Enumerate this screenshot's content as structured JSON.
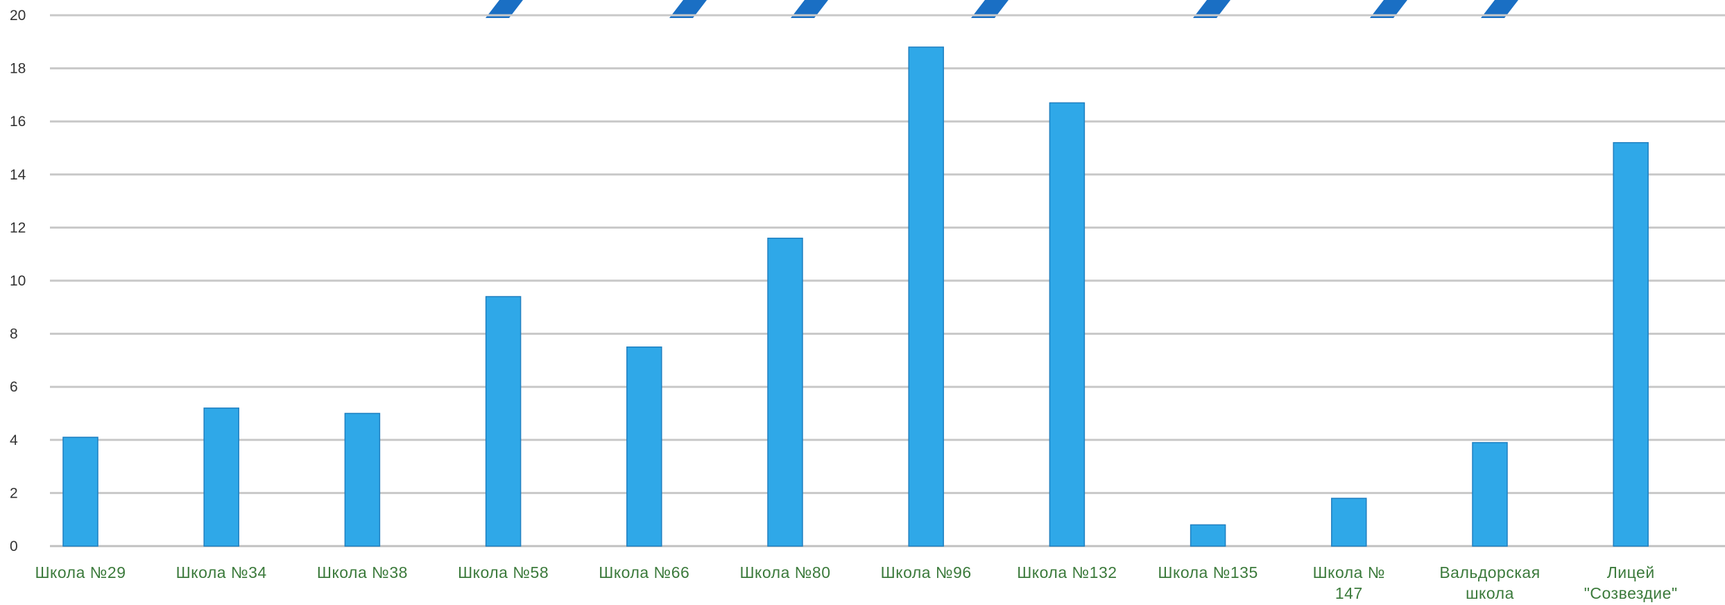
{
  "chart_data": {
    "type": "bar",
    "categories": [
      "Школа №29",
      "Школа №34",
      "Школа №38",
      "Школа №58",
      "Школа №66",
      "Школа №80",
      "Школа №96",
      "Школа №132",
      "Школа №135",
      "Школа № 147",
      "Вальдорская школа",
      "Лицей \"Созвездие\""
    ],
    "category_lines": [
      [
        "Школа №29"
      ],
      [
        "Школа №34"
      ],
      [
        "Школа №38"
      ],
      [
        "Школа №58"
      ],
      [
        "Школа №66"
      ],
      [
        "Школа №80"
      ],
      [
        "Школа №96"
      ],
      [
        "Школа №132"
      ],
      [
        "Школа №135"
      ],
      [
        "Школа №",
        "147"
      ],
      [
        "Вальдорская",
        "школа"
      ],
      [
        "Лицей",
        "\"Созвездие\""
      ]
    ],
    "values": [
      4.1,
      5.2,
      5.0,
      9.4,
      7.5,
      11.6,
      18.8,
      16.7,
      0.8,
      1.8,
      3.9,
      15.2
    ],
    "ylim": [
      0,
      20
    ],
    "yticks": [
      0,
      2,
      4,
      6,
      8,
      10,
      12,
      14,
      16,
      18,
      20
    ],
    "grid": true,
    "legend": "none",
    "title": "",
    "xlabel": "",
    "ylabel": "",
    "colors": {
      "bar": "#2fa8e8",
      "bar_edge": "#1f7fc0",
      "grid": "#c8c8c8",
      "tick_text": "#333333",
      "category_text": "#3b7a3b",
      "title_fragment": "#1a6fc4"
    }
  }
}
